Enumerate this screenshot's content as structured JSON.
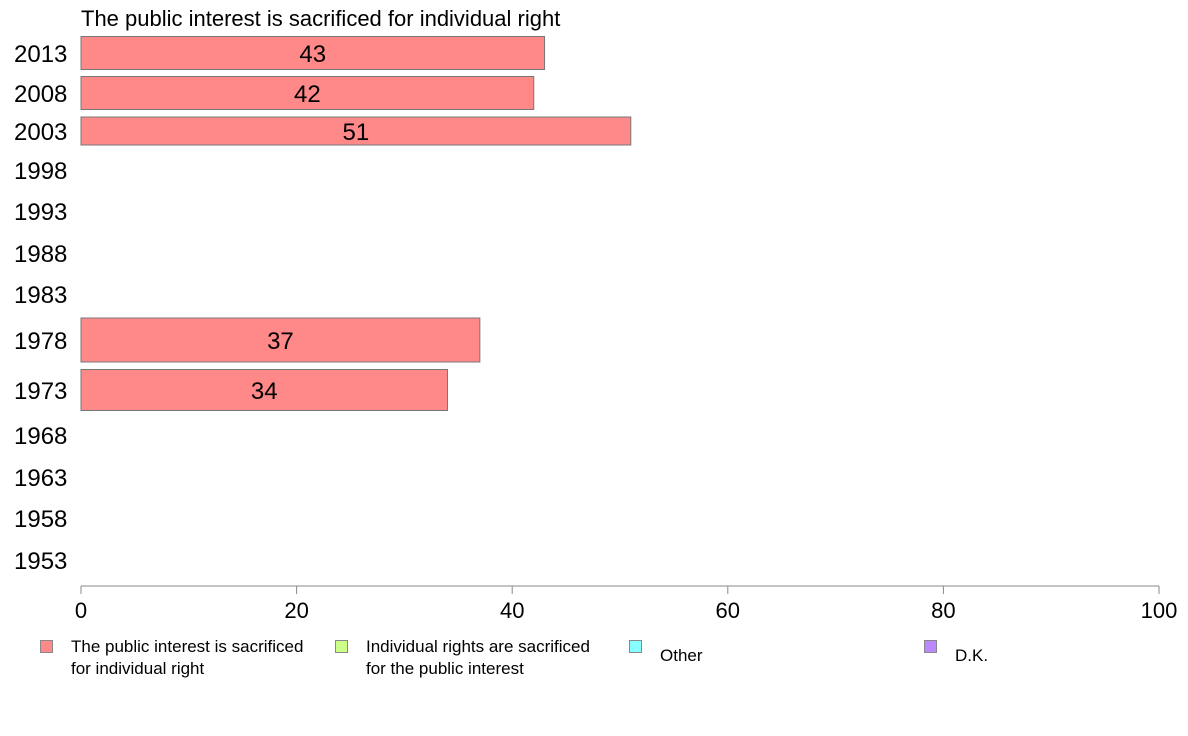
{
  "chart_data": {
    "type": "bar",
    "orientation": "horizontal",
    "title": "The public interest is sacrificed for individual right",
    "categories": [
      "2013",
      "2008",
      "2003",
      "1998",
      "1993",
      "1988",
      "1983",
      "1978",
      "1973",
      "1968",
      "1963",
      "1958",
      "1953"
    ],
    "series": [
      {
        "name": "The public interest is sacrificed for individual right",
        "color": "#ff8888",
        "values": [
          43,
          42,
          51,
          null,
          null,
          null,
          null,
          37,
          34,
          null,
          null,
          null,
          null
        ],
        "labels": [
          "43",
          "42",
          "51",
          "",
          "",
          "",
          "",
          "37",
          "34",
          "",
          "",
          "",
          ""
        ]
      }
    ],
    "xlim": [
      0,
      100
    ],
    "xticks": [
      "0",
      "20",
      "40",
      "60",
      "80",
      "100"
    ],
    "grid": false,
    "legend_position": "bottom",
    "legend": [
      {
        "label": "The public interest is sacrificed\nfor individual right",
        "color": "#ff8888"
      },
      {
        "label": "Individual rights are sacrificed\nfor the public interest",
        "color": "#ccff88"
      },
      {
        "label": "Other",
        "color": "#88ffff"
      },
      {
        "label": "D.K.",
        "color": "#bb88ff"
      }
    ]
  }
}
